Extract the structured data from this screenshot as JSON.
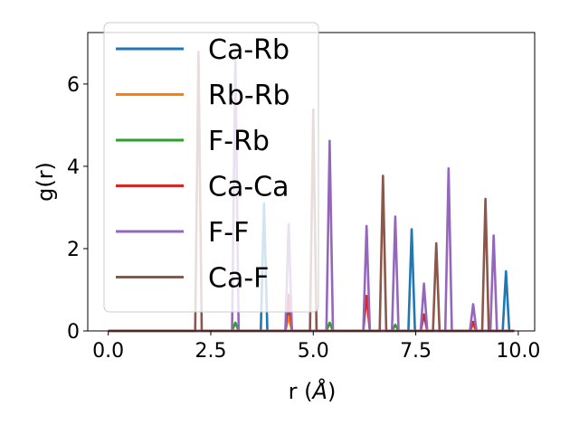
{
  "chart_data": {
    "type": "line",
    "xlabel_main": "r (",
    "xlabel_unit": "Å",
    "xlabel_close": ")",
    "ylabel": "g(r)",
    "xlim": [
      -0.5,
      10.4
    ],
    "ylim": [
      0,
      7.25
    ],
    "xticks": [
      0.0,
      2.5,
      5.0,
      7.5,
      10.0
    ],
    "xtick_labels": [
      "0.0",
      "2.5",
      "5.0",
      "7.5",
      "10.0"
    ],
    "yticks": [
      0,
      2,
      4,
      6
    ],
    "ytick_labels": [
      "0",
      "2",
      "4",
      "6"
    ],
    "grid": false,
    "legend_position": "upper-left",
    "x_range": [
      0.0,
      9.9
    ],
    "series": [
      {
        "name": "Ca-Rb",
        "color": "#1f77b4",
        "peaks": [
          [
            3.8,
            3.1
          ],
          [
            4.4,
            0.6
          ],
          [
            7.4,
            2.47
          ],
          [
            9.7,
            1.45
          ]
        ]
      },
      {
        "name": "Rb-Rb",
        "color": "#ff7f0e",
        "peaks": [
          [
            4.4,
            0.35
          ],
          [
            8.9,
            0.15
          ]
        ]
      },
      {
        "name": "F-Rb",
        "color": "#2ca02c",
        "peaks": [
          [
            3.1,
            0.2
          ],
          [
            5.4,
            0.2
          ],
          [
            7.0,
            0.15
          ]
        ]
      },
      {
        "name": "Ca-Ca",
        "color": "#d62728",
        "peaks": [
          [
            4.4,
            0.88
          ],
          [
            6.3,
            0.85
          ],
          [
            7.7,
            0.4
          ],
          [
            8.9,
            0.22
          ]
        ]
      },
      {
        "name": "F-F",
        "color": "#9467bd",
        "peaks": [
          [
            3.1,
            6.7
          ],
          [
            4.4,
            2.6
          ],
          [
            5.4,
            4.62
          ],
          [
            6.3,
            2.55
          ],
          [
            7.0,
            2.78
          ],
          [
            7.7,
            1.15
          ],
          [
            8.3,
            3.95
          ],
          [
            8.9,
            0.65
          ],
          [
            9.4,
            2.32
          ]
        ]
      },
      {
        "name": "Ca-F",
        "color": "#8c564b",
        "peaks": [
          [
            2.2,
            6.78
          ],
          [
            5.0,
            5.38
          ],
          [
            6.7,
            3.77
          ],
          [
            8.0,
            2.13
          ],
          [
            9.2,
            3.21
          ]
        ]
      }
    ]
  }
}
